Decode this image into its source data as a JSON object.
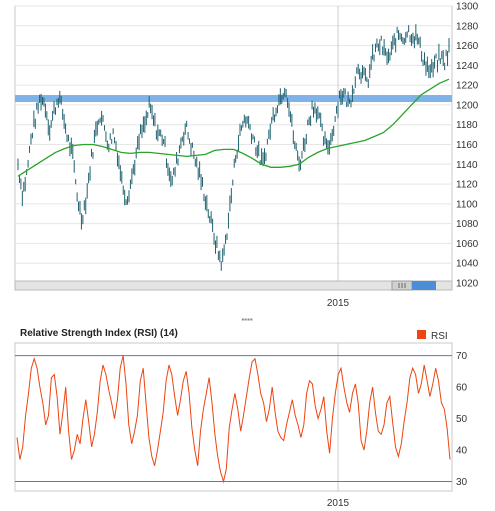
{
  "chart_data": [
    {
      "type": "ohlc",
      "title": "",
      "xlabel": "",
      "ylabel": "",
      "ylim": [
        1020,
        1300
      ],
      "y_ticks": [
        "1300",
        "1280",
        "1260",
        "1240",
        "1220",
        "1200",
        "1180",
        "1160",
        "1140",
        "1120",
        "1100",
        "1080",
        "1060",
        "1040",
        "1020"
      ],
      "x_ticks": [
        "2015"
      ],
      "grid": true,
      "series": [
        {
          "kind": "high-low-bars",
          "color": "#1f6170",
          "values": [
            1140,
            1110,
            1132,
            1170,
            1190,
            1208,
            1200,
            1175,
            1195,
            1210,
            1188,
            1165,
            1150,
            1110,
            1085,
            1105,
            1140,
            1170,
            1192,
            1178,
            1160,
            1172,
            1150,
            1120,
            1105,
            1125,
            1148,
            1170,
            1180,
            1198,
            1182,
            1170,
            1168,
            1140,
            1122,
            1142,
            1165,
            1178,
            1162,
            1145,
            1130,
            1112,
            1092,
            1072,
            1052,
            1040,
            1070,
            1108,
            1150,
            1172,
            1188,
            1180,
            1165,
            1150,
            1140,
            1162,
            1185,
            1200,
            1210,
            1220,
            1190,
            1160,
            1140,
            1158,
            1182,
            1200,
            1195,
            1172,
            1156,
            1165,
            1190,
            1212,
            1210,
            1200,
            1220,
            1240,
            1230,
            1222,
            1245,
            1258,
            1262,
            1250,
            1248,
            1265,
            1272,
            1268,
            1275,
            1270,
            1268,
            1252,
            1240,
            1232,
            1242,
            1248,
            1244,
            1256
          ]
        },
        {
          "kind": "moving-average",
          "color": "#2aa32a",
          "values": [
            1128,
            1134,
            1140,
            1146,
            1152,
            1156,
            1159,
            1160,
            1160,
            1158,
            1155,
            1152,
            1151,
            1152,
            1152,
            1151,
            1150,
            1149,
            1148,
            1149,
            1150,
            1154,
            1155,
            1155,
            1151,
            1146,
            1140,
            1137,
            1137,
            1138,
            1140,
            1147,
            1152,
            1156,
            1158,
            1160,
            1162,
            1164,
            1168,
            1172,
            1180,
            1190,
            1200,
            1210,
            1216,
            1222,
            1226
          ]
        }
      ],
      "support_band": [
        1203,
        1210
      ],
      "band_color": "#7fb2e6"
    },
    {
      "type": "line",
      "title": "Relative Strength Index (RSI) (14)",
      "legend": "RSI",
      "legend_position": "top-right",
      "ylim": [
        27,
        74
      ],
      "y_ticks": [
        "70",
        "60",
        "50",
        "40",
        "30"
      ],
      "x_ticks": [
        "2015"
      ],
      "reference_lines": [
        70,
        30
      ],
      "series": [
        {
          "name": "RSI",
          "color": "#ee4411",
          "values": [
            44,
            37,
            41,
            51,
            58,
            66,
            69,
            66,
            60,
            55,
            48,
            51,
            63,
            64,
            57,
            45,
            52,
            60,
            46,
            37,
            40,
            45,
            42,
            50,
            56,
            49,
            41,
            45,
            52,
            62,
            67,
            64,
            59,
            55,
            50,
            56,
            66,
            70,
            61,
            48,
            42,
            46,
            51,
            62,
            66,
            55,
            44,
            38,
            35,
            40,
            46,
            52,
            62,
            67,
            64,
            57,
            51,
            56,
            62,
            65,
            58,
            47,
            40,
            35,
            46,
            53,
            58,
            63,
            55,
            45,
            38,
            33,
            30,
            34,
            47,
            53,
            58,
            53,
            46,
            51,
            57,
            63,
            68,
            69,
            64,
            58,
            55,
            49,
            53,
            60,
            52,
            46,
            44,
            43,
            48,
            52,
            56,
            51,
            48,
            44,
            48,
            58,
            62,
            61,
            54,
            50,
            53,
            57,
            46,
            39,
            50,
            58,
            64,
            66,
            60,
            55,
            52,
            58,
            61,
            55,
            43,
            40,
            46,
            55,
            60,
            52,
            46,
            45,
            48,
            55,
            57,
            49,
            41,
            38,
            42,
            49,
            55,
            63,
            66,
            64,
            58,
            61,
            67,
            62,
            57,
            61,
            66,
            62,
            55,
            53,
            47,
            37
          ]
        }
      ]
    }
  ],
  "ui": {
    "separator_dots": "▪▪▪▪",
    "scrollbar": "scrollbar-grip-icon"
  }
}
